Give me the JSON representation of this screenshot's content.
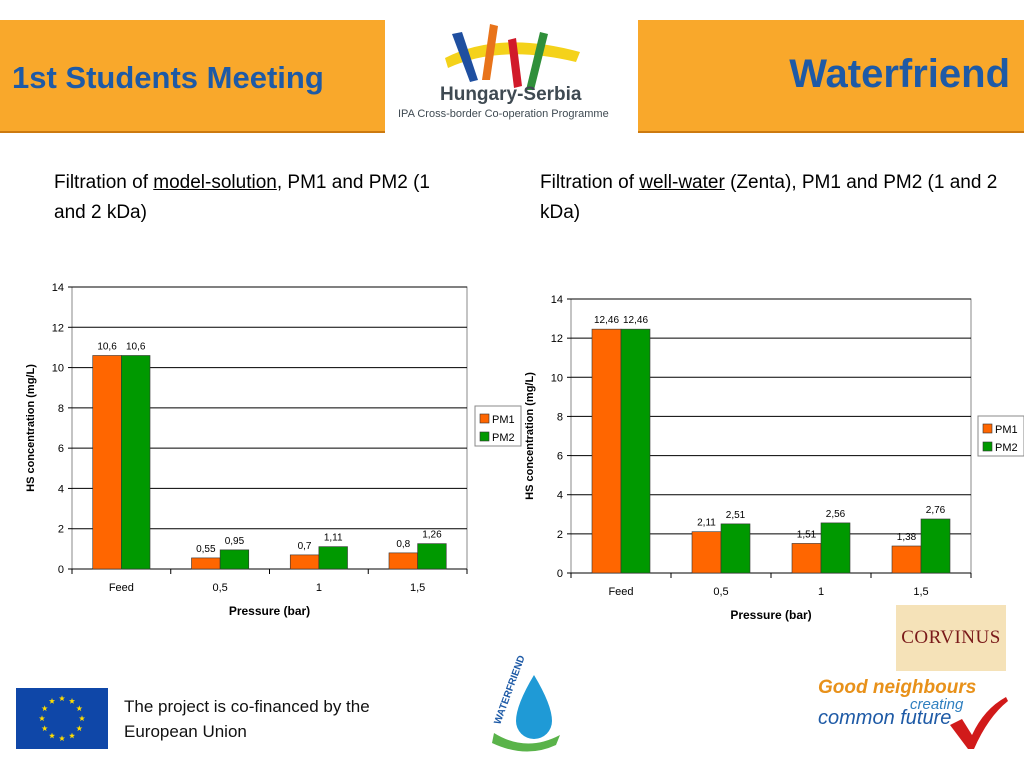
{
  "header": {
    "left_title": "1st Students Meeting",
    "right_title": "Waterfriend",
    "logo_title": "Hungary-Serbia",
    "logo_subtitle": "IPA Cross-border Co-operation Programme"
  },
  "captions": {
    "left": {
      "prefix": "Filtration of ",
      "link": "model-solution",
      "suffix": ", PM1 and PM2 (1 and 2 kDa)"
    },
    "right": {
      "prefix": "Filtration of ",
      "link": "well-water",
      "suffix": " (Zenta), PM1 and PM2 (1 and 2 kDa)"
    }
  },
  "chart_data": [
    {
      "type": "bar",
      "categories": [
        "Feed",
        "0,5",
        "1",
        "1,5"
      ],
      "series": [
        {
          "name": "PM1",
          "values": [
            10.6,
            0.55,
            0.7,
            0.8
          ],
          "labels": [
            "10,6",
            "0,55",
            "0,7",
            "0,8"
          ],
          "color": "#ff6600"
        },
        {
          "name": "PM2",
          "values": [
            10.6,
            0.95,
            1.11,
            1.26
          ],
          "labels": [
            "10,6",
            "0,95",
            "1,11",
            "1,26"
          ],
          "color": "#009900"
        }
      ],
      "xlabel": "Pressure (bar)",
      "ylabel": "HS concentration (mg/L)",
      "ylim": [
        0,
        14
      ],
      "yticks": [
        "0",
        "2",
        "4",
        "6",
        "8",
        "10",
        "12",
        "14"
      ],
      "grid": true,
      "legend": "right"
    },
    {
      "type": "bar",
      "categories": [
        "Feed",
        "0,5",
        "1",
        "1,5"
      ],
      "series": [
        {
          "name": "PM1",
          "values": [
            12.46,
            2.11,
            1.51,
            1.38
          ],
          "labels": [
            "12,46",
            "2,11",
            "1,51",
            "1,38"
          ],
          "color": "#ff6600"
        },
        {
          "name": "PM2",
          "values": [
            12.46,
            2.51,
            2.56,
            2.76
          ],
          "labels": [
            "12,46",
            "2,51",
            "2,56",
            "2,76"
          ],
          "color": "#009900"
        }
      ],
      "xlabel": "Pressure (bar)",
      "ylabel": "HS concentration (mg/L)",
      "ylim": [
        0,
        14
      ],
      "yticks": [
        "0",
        "2",
        "4",
        "6",
        "8",
        "10",
        "12",
        "14"
      ],
      "grid": true,
      "legend": "right"
    }
  ],
  "footer": {
    "eu_text": "The project is co-financed by the European Union",
    "waterfriend_logo_text": "WATERFRIEND",
    "corvinus": "CORVINUS",
    "slogan_1": "Good neighbours",
    "slogan_2": "creating",
    "slogan_3": "common future"
  }
}
